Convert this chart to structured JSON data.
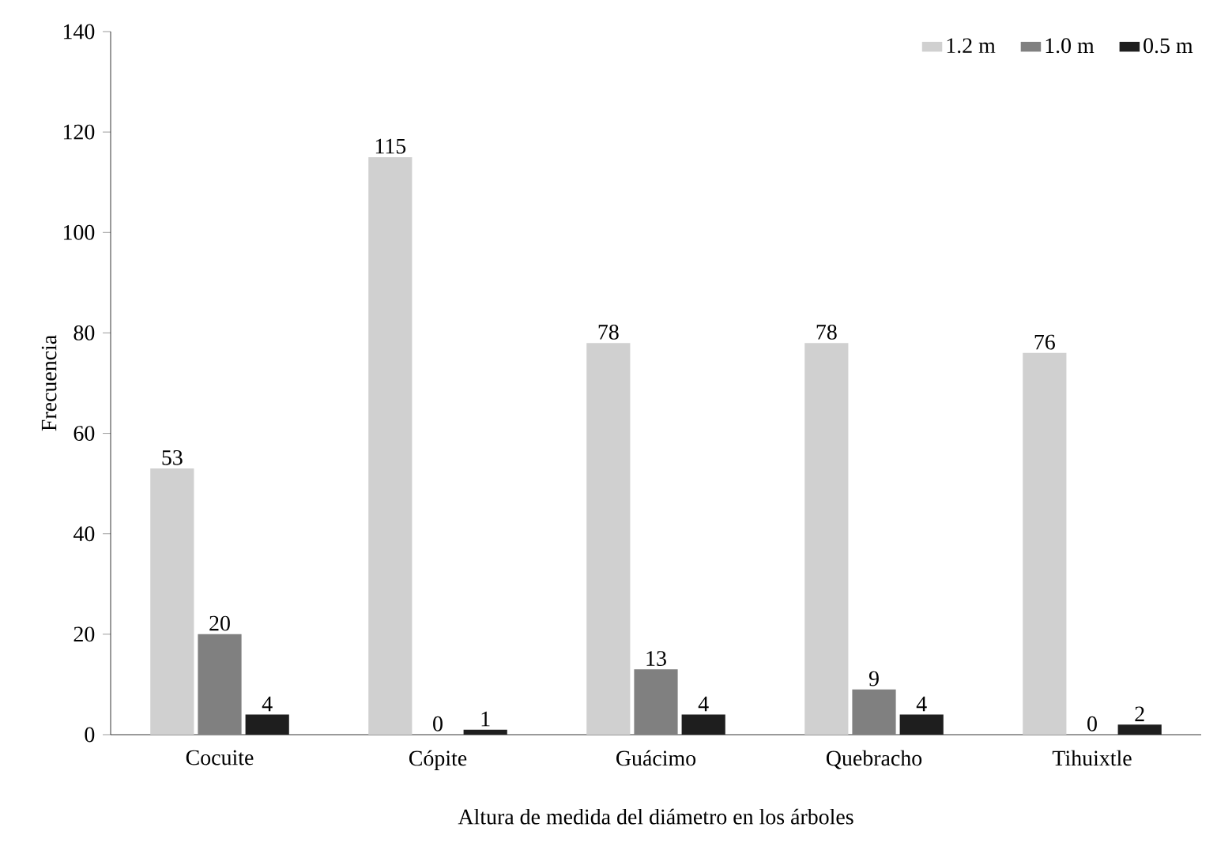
{
  "chart_data": {
    "type": "bar",
    "xlabel": "Altura de medida del diámetro en los árboles",
    "ylabel": "Frecuencia",
    "categories": [
      "Cocuite",
      "Cópite",
      "Guácimo",
      "Quebracho",
      "Tihuixtle"
    ],
    "series": [
      {
        "name": "1.2 m",
        "color": "#d0d0d0",
        "values": [
          53,
          115,
          78,
          78,
          76
        ]
      },
      {
        "name": "1.0 m",
        "color": "#808080",
        "values": [
          20,
          0,
          13,
          9,
          0
        ]
      },
      {
        "name": "0.5 m",
        "color": "#1e1e1e",
        "values": [
          4,
          1,
          4,
          4,
          2
        ]
      }
    ],
    "ylim": [
      0,
      140
    ],
    "yticks": [
      0,
      20,
      40,
      60,
      80,
      100,
      120,
      140
    ],
    "data_labels": true,
    "legend": "top right",
    "grid": false
  }
}
